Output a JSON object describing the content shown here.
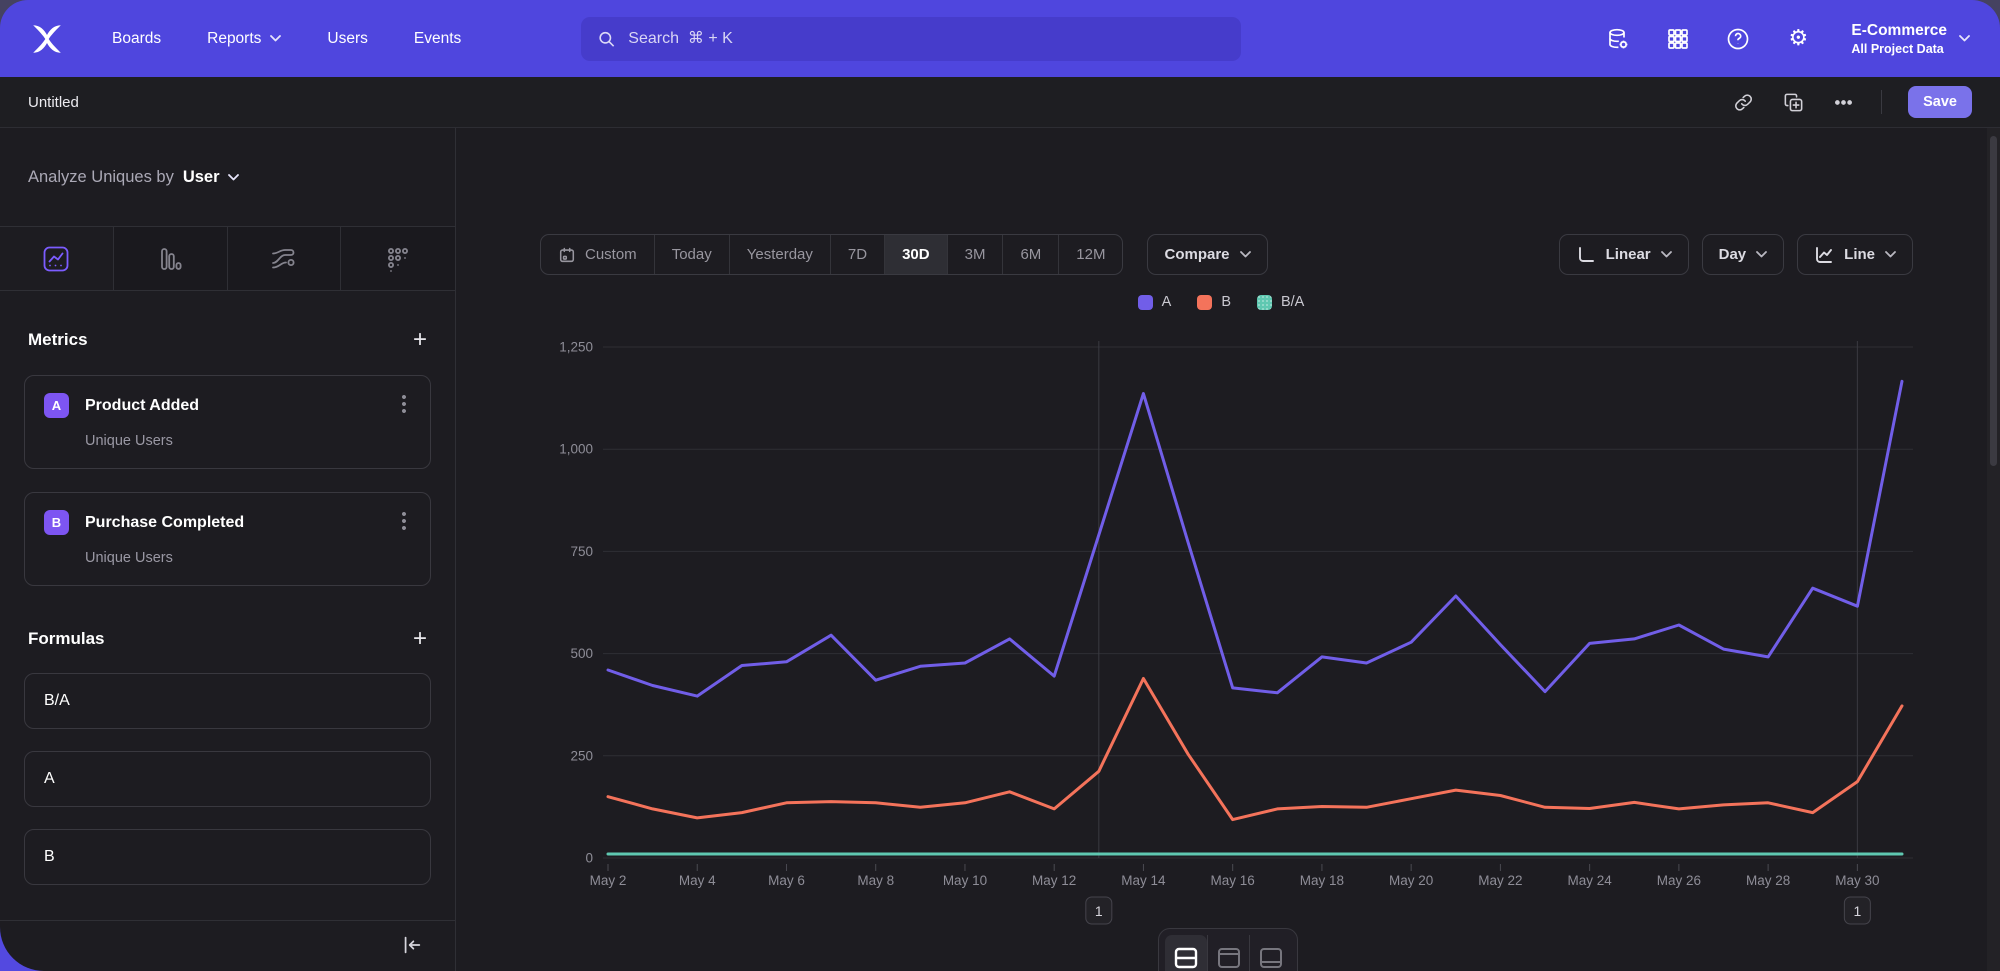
{
  "topnav": {
    "items": [
      {
        "label": "Boards",
        "dropdown": false
      },
      {
        "label": "Reports",
        "dropdown": true
      },
      {
        "label": "Users",
        "dropdown": false
      },
      {
        "label": "Events",
        "dropdown": false
      }
    ],
    "search_placeholder": "Search  ⌘ + K",
    "icons": [
      "data-management-icon",
      "apps-grid-icon",
      "help-icon",
      "settings-gear-icon"
    ],
    "project": {
      "name": "E-Commerce",
      "scope": "All Project Data"
    }
  },
  "toolbar": {
    "title": "Untitled",
    "save_label": "Save"
  },
  "sidebar": {
    "analyze_prefix": "Analyze Uniques by",
    "analyze_value": "User",
    "metrics_title": "Metrics",
    "metrics": [
      {
        "badge": "A",
        "name": "Product Added",
        "sub": "Unique Users"
      },
      {
        "badge": "B",
        "name": "Purchase Completed",
        "sub": "Unique Users"
      }
    ],
    "formulas_title": "Formulas",
    "formulas": [
      {
        "label": "B/A"
      },
      {
        "label": "A"
      },
      {
        "label": "B"
      }
    ]
  },
  "controls": {
    "ranges": [
      "Custom",
      "Today",
      "Yesterday",
      "7D",
      "30D",
      "3M",
      "6M",
      "12M"
    ],
    "active_range": "30D",
    "compare_label": "Compare",
    "scale_label": "Linear",
    "interval_label": "Day",
    "chart_type_label": "Line"
  },
  "chart_data": {
    "type": "line",
    "title": "",
    "x": [
      "May 2",
      "May 3",
      "May 4",
      "May 5",
      "May 6",
      "May 7",
      "May 8",
      "May 9",
      "May 10",
      "May 11",
      "May 12",
      "May 13",
      "May 14",
      "May 15",
      "May 16",
      "May 17",
      "May 18",
      "May 19",
      "May 20",
      "May 21",
      "May 22",
      "May 23",
      "May 24",
      "May 25",
      "May 26",
      "May 27",
      "May 28",
      "May 29",
      "May 30",
      "May 31"
    ],
    "x_tick_every": 2,
    "ylim": [
      0,
      1250
    ],
    "yticks": [
      0,
      250,
      500,
      750,
      1000,
      1250
    ],
    "ytick_labels": [
      "0",
      "250",
      "500",
      "750",
      "1,000",
      "1,250"
    ],
    "grid": true,
    "legend_position": "top",
    "series": [
      {
        "name": "A",
        "color": "#715EE8",
        "values": [
          460,
          422,
          396,
          471,
          480,
          545,
          435,
          469,
          477,
          536,
          445,
          790,
          1136,
          772,
          416,
          404,
          492,
          477,
          528,
          641,
          522,
          407,
          525,
          536,
          570,
          511,
          492,
          660,
          616,
          1166
        ]
      },
      {
        "name": "B",
        "color": "#F4735B",
        "values": [
          150,
          120,
          98,
          111,
          135,
          138,
          135,
          124,
          135,
          162,
          120,
          212,
          439,
          254,
          94,
          120,
          126,
          124,
          145,
          166,
          153,
          124,
          121,
          136,
          120,
          130,
          135,
          111,
          187,
          372
        ]
      },
      {
        "name": "B/A",
        "color": "#5FC8B1",
        "values": [
          0.33,
          0.28,
          0.25,
          0.24,
          0.28,
          0.25,
          0.31,
          0.26,
          0.28,
          0.3,
          0.27,
          0.27,
          0.39,
          0.33,
          0.23,
          0.3,
          0.26,
          0.26,
          0.27,
          0.26,
          0.29,
          0.3,
          0.23,
          0.25,
          0.21,
          0.25,
          0.27,
          0.17,
          0.3,
          0.32
        ]
      }
    ],
    "annotations": [
      {
        "label": "1",
        "x": "May 13"
      },
      {
        "label": "1",
        "x": "May 30"
      }
    ]
  }
}
